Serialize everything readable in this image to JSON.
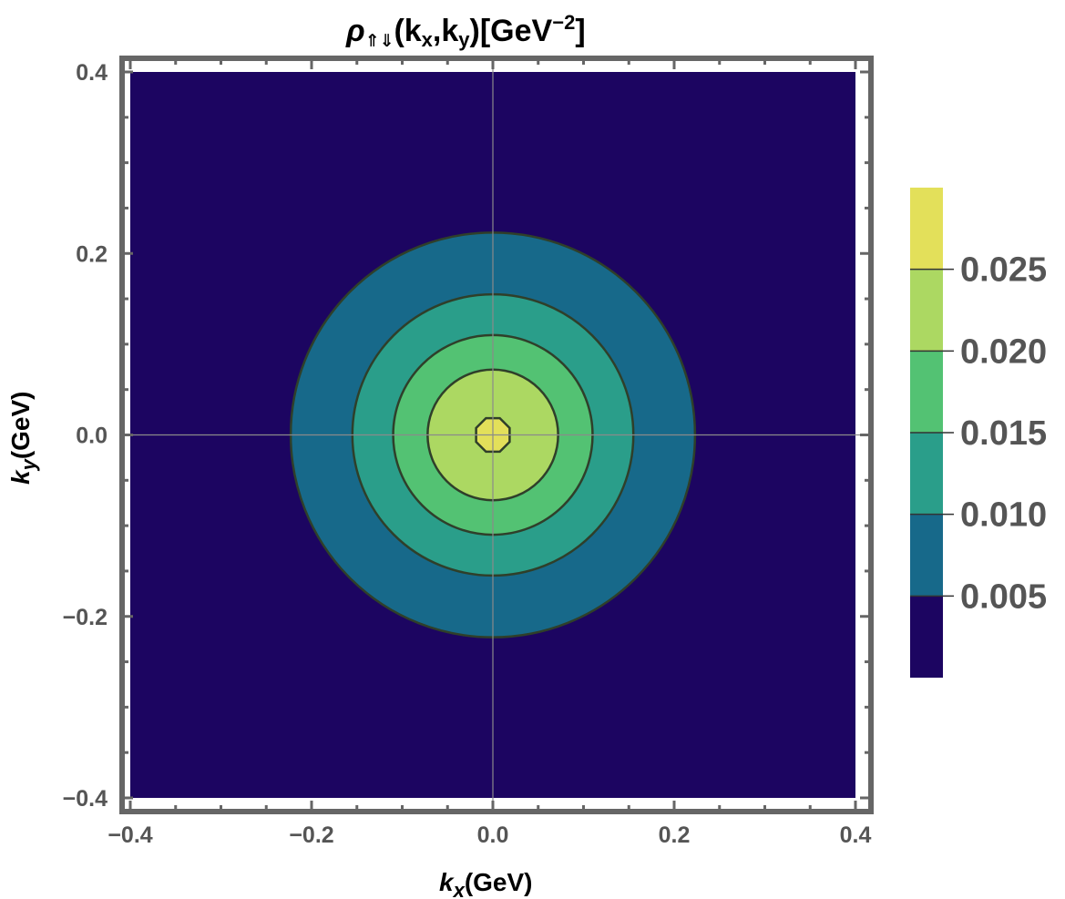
{
  "chart_data": {
    "type": "contour",
    "title": {
      "symbol": "ρ",
      "subscript": "⇑⇓",
      "args_open": "(k",
      "args_x": "x",
      "args_sep": ",k",
      "args_y": "y",
      "args_close": ")[GeV",
      "unit_exp": "−2",
      "unit_close": "]"
    },
    "xlabel": {
      "base": "k",
      "sub": "x",
      "rest": "(GeV)"
    },
    "ylabel": {
      "base": "k",
      "sub": "y",
      "rest": "(GeV)"
    },
    "xlim": [
      -0.4,
      0.4
    ],
    "ylim": [
      -0.4,
      0.4
    ],
    "x_ticks": [
      {
        "value": -0.4,
        "label": "−0.4"
      },
      {
        "value": -0.2,
        "label": "−0.2"
      },
      {
        "value": 0.0,
        "label": "0.0"
      },
      {
        "value": 0.2,
        "label": "0.2"
      },
      {
        "value": 0.4,
        "label": "0.4"
      }
    ],
    "y_ticks": [
      {
        "value": 0.4,
        "label": "0.4"
      },
      {
        "value": 0.2,
        "label": "0.2"
      },
      {
        "value": 0.0,
        "label": "0.0"
      },
      {
        "value": -0.2,
        "label": "−0.2"
      },
      {
        "value": -0.4,
        "label": "−0.4"
      }
    ],
    "grid": "axes-through-origin",
    "background_color": "#1c0561",
    "contour_levels": [
      {
        "level": 0.005,
        "radius": 0.223,
        "fill": "#17698a"
      },
      {
        "level": 0.01,
        "radius": 0.155,
        "fill": "#2a9e8a"
      },
      {
        "level": 0.015,
        "radius": 0.11,
        "fill": "#53c273"
      },
      {
        "level": 0.02,
        "radius": 0.072,
        "fill": "#acd862"
      },
      {
        "level": 0.025,
        "radius": 0.02,
        "fill": "#e3e05a"
      }
    ],
    "legend": {
      "placement": "right",
      "range": [
        0,
        0.03
      ],
      "bands": [
        {
          "from": 0.0,
          "to": 0.005,
          "color": "#1c0561"
        },
        {
          "from": 0.005,
          "to": 0.01,
          "color": "#17698a"
        },
        {
          "from": 0.01,
          "to": 0.015,
          "color": "#2a9e8a"
        },
        {
          "from": 0.015,
          "to": 0.02,
          "color": "#53c273"
        },
        {
          "from": 0.02,
          "to": 0.025,
          "color": "#acd862"
        },
        {
          "from": 0.025,
          "to": 0.03,
          "color": "#e3e05a"
        }
      ],
      "ticks": [
        {
          "value": 0.005,
          "label": "0.005"
        },
        {
          "value": 0.01,
          "label": "0.010"
        },
        {
          "value": 0.015,
          "label": "0.015"
        },
        {
          "value": 0.02,
          "label": "0.020"
        },
        {
          "value": 0.025,
          "label": "0.025"
        }
      ]
    },
    "colors": {
      "frame": "#666666",
      "contour_line": "#2f3f2a",
      "crosshair": "#8a8a8a"
    }
  }
}
